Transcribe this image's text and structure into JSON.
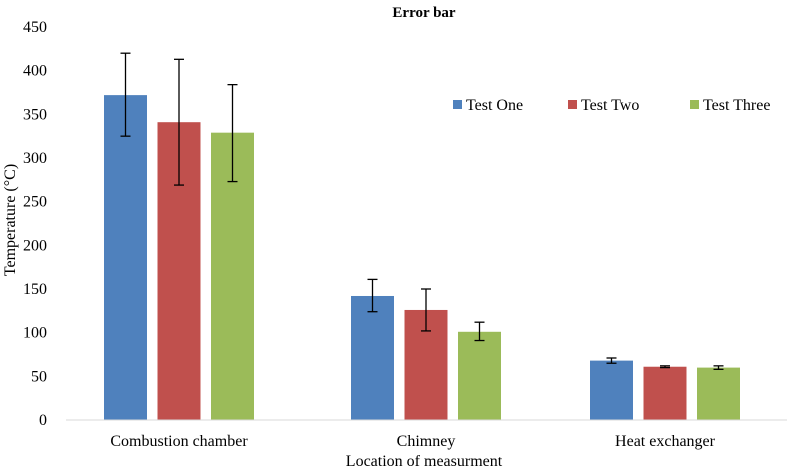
{
  "chart_data": {
    "type": "bar",
    "title": "Error bar",
    "xlabel": "Location of measurment",
    "ylabel": "Temperature (°C)",
    "ylim": [
      0,
      450
    ],
    "yticks": [
      0,
      50,
      100,
      150,
      200,
      250,
      300,
      350,
      400,
      450
    ],
    "categories": [
      "Combustion chamber",
      "Chimney",
      "Heat exchanger"
    ],
    "series": [
      {
        "name": "Test One",
        "color": "#4F81BD",
        "values": [
          372,
          142,
          68
        ],
        "err_low": [
          325,
          124,
          65
        ],
        "err_high": [
          420,
          161,
          71
        ]
      },
      {
        "name": "Test Two",
        "color": "#C0504D",
        "values": [
          341,
          126,
          61
        ],
        "err_low": [
          269,
          102,
          60
        ],
        "err_high": [
          413,
          150,
          62
        ]
      },
      {
        "name": "Test Three",
        "color": "#9BBB59",
        "values": [
          329,
          101,
          60
        ],
        "err_low": [
          273,
          91,
          58
        ],
        "err_high": [
          384,
          112,
          62
        ]
      }
    ],
    "legend_position": "top-right",
    "grid": false
  }
}
